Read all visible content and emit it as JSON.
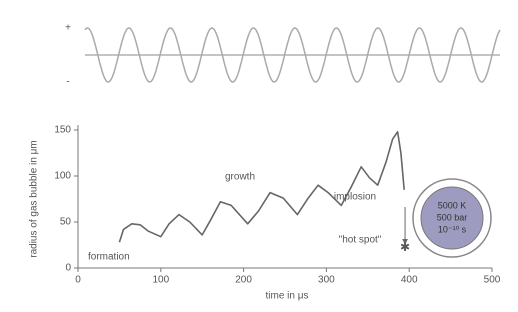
{
  "chart_data": [
    {
      "type": "wave",
      "labels": [
        "+",
        "-"
      ],
      "cycles": 10,
      "color": "#aaa"
    },
    {
      "type": "line",
      "x": [
        50,
        55,
        65,
        75,
        85,
        100,
        110,
        122,
        135,
        150,
        160,
        172,
        185,
        205,
        218,
        232,
        248,
        265,
        278,
        290,
        302,
        318,
        330,
        342,
        352,
        362,
        372,
        380,
        386,
        390,
        394
      ],
      "values": [
        28,
        42,
        48,
        47,
        40,
        34,
        48,
        58,
        50,
        36,
        52,
        72,
        68,
        48,
        62,
        82,
        76,
        58,
        76,
        90,
        82,
        68,
        88,
        110,
        98,
        90,
        115,
        140,
        148,
        125,
        85
      ],
      "color": "#666",
      "xlim": [
        0,
        500
      ],
      "xticks": [
        0,
        100,
        200,
        300,
        400,
        500
      ],
      "ylim": [
        0,
        150
      ],
      "yticks": [
        0,
        50,
        100,
        150
      ],
      "x_label": "time in μs",
      "y_label": "radius of gas bubble in μm",
      "annotations": [
        "formation",
        "growth",
        "implosion",
        "\"hot spot\""
      ],
      "hot_spot": {
        "x": 395,
        "y": 22
      },
      "bubble_text": [
        "5000 K",
        "500 bar",
        "10⁻¹⁰ s"
      ]
    }
  ]
}
